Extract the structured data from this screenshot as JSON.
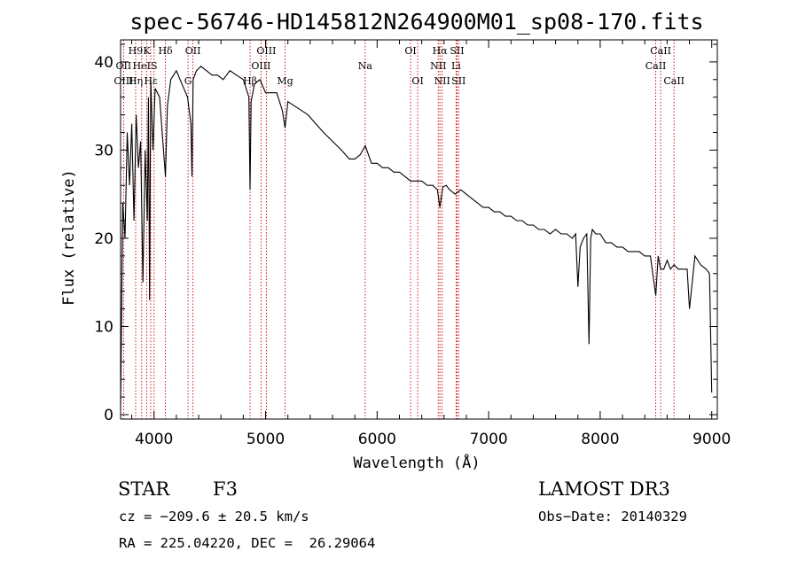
{
  "chart_data": {
    "type": "line",
    "title": "spec-56746-HD145812N264900M01_sp08-170.fits",
    "xlabel": "Wavelength (Å)",
    "ylabel": "Flux (relative)",
    "xlim": [
      3700,
      9050
    ],
    "ylim": [
      -0.5,
      42.5
    ],
    "xticks": [
      4000,
      5000,
      6000,
      7000,
      8000,
      9000
    ],
    "yticks": [
      0,
      10,
      20,
      30,
      40
    ],
    "grid": false,
    "series": [
      {
        "name": "spectrum",
        "x": [
          3700,
          3720,
          3740,
          3760,
          3780,
          3800,
          3820,
          3840,
          3860,
          3880,
          3900,
          3920,
          3940,
          3950,
          3960,
          3970,
          3990,
          4010,
          4050,
          4102,
          4120,
          4150,
          4200,
          4250,
          4300,
          4330,
          4340,
          4350,
          4380,
          4420,
          4470,
          4520,
          4570,
          4620,
          4680,
          4740,
          4800,
          4850,
          4861,
          4870,
          4900,
          4950,
          5000,
          5050,
          5100,
          5150,
          5175,
          5200,
          5260,
          5320,
          5380,
          5450,
          5520,
          5600,
          5680,
          5750,
          5800,
          5850,
          5893,
          5950,
          6000,
          6050,
          6100,
          6150,
          6200,
          6250,
          6300,
          6350,
          6400,
          6450,
          6500,
          6540,
          6563,
          6590,
          6620,
          6650,
          6700,
          6750,
          6800,
          6850,
          6900,
          6950,
          7000,
          7050,
          7100,
          7150,
          7200,
          7250,
          7300,
          7350,
          7400,
          7450,
          7500,
          7550,
          7600,
          7650,
          7700,
          7750,
          7780,
          7800,
          7820,
          7850,
          7880,
          7900,
          7915,
          7930,
          7960,
          8000,
          8050,
          8100,
          8150,
          8200,
          8250,
          8300,
          8350,
          8400,
          8450,
          8498,
          8520,
          8542,
          8570,
          8600,
          8630,
          8662,
          8700,
          8750,
          8780,
          8800,
          8850,
          8900,
          8950,
          8980,
          9000
        ],
        "values": [
          0.5,
          24,
          20,
          32,
          26,
          33,
          22,
          34,
          28,
          31,
          15,
          30,
          22,
          36,
          13,
          38,
          30,
          37,
          36,
          27,
          35,
          38,
          39,
          37.5,
          36,
          33,
          27,
          38,
          39,
          39.5,
          39,
          38.5,
          38.5,
          38,
          39,
          38.5,
          38,
          36,
          25.5,
          35.5,
          37.5,
          38,
          36.5,
          36.5,
          36.5,
          34.5,
          32.5,
          35.5,
          35,
          34.5,
          34,
          33,
          32,
          31,
          30,
          29,
          29,
          29.5,
          30.5,
          28.5,
          28.5,
          28,
          28,
          27.5,
          27.5,
          27,
          26.5,
          26.5,
          26.5,
          26,
          26,
          25.5,
          23.5,
          25.8,
          26,
          25.5,
          25,
          25.5,
          25,
          24.5,
          24,
          23.5,
          23.5,
          23,
          23,
          22.5,
          22.5,
          22,
          22,
          21.5,
          21.5,
          21,
          21,
          20.5,
          21,
          20.5,
          20.5,
          20,
          20.5,
          14.5,
          19,
          20,
          20.5,
          8,
          20,
          21,
          20.5,
          20.5,
          19.5,
          19.5,
          19,
          19,
          18.5,
          18.5,
          18.5,
          18,
          18,
          13.5,
          18,
          16.5,
          16.5,
          17.5,
          16.5,
          17,
          16.5,
          16.5,
          16.5,
          12,
          18,
          17,
          16.5,
          16,
          2.5
        ]
      }
    ],
    "spectral_lines": [
      {
        "name": "H9",
        "wl": 3835,
        "row": 0
      },
      {
        "name": "K",
        "wl": 3934,
        "row": 0
      },
      {
        "name": "Hδ",
        "wl": 4102,
        "row": 0
      },
      {
        "name": "OII",
        "wl": 4349,
        "row": 0
      },
      {
        "name": "OIII",
        "wl": 5007,
        "row": 0
      },
      {
        "name": "OI",
        "wl": 6300,
        "row": 0
      },
      {
        "name": "Hα",
        "wl": 6563,
        "row": 0
      },
      {
        "name": "SII",
        "wl": 6717,
        "row": 0
      },
      {
        "name": "CaII",
        "wl": 8542,
        "row": 0
      },
      {
        "name": "OII",
        "wl": 3727,
        "row": 1
      },
      {
        "name": "HeI",
        "wl": 3889,
        "row": 1
      },
      {
        "name": "S",
        "wl": 4000,
        "row": 1
      },
      {
        "name": "OIII",
        "wl": 4959,
        "row": 1
      },
      {
        "name": "Na",
        "wl": 5893,
        "row": 1
      },
      {
        "name": "NII",
        "wl": 6548,
        "row": 1
      },
      {
        "name": "Li",
        "wl": 6708,
        "row": 1
      },
      {
        "name": "CaII",
        "wl": 8498,
        "row": 1
      },
      {
        "name": "OIII",
        "wl": 3727,
        "row": 2
      },
      {
        "name": "Hη",
        "wl": 3835,
        "row": 2
      },
      {
        "name": "Hε",
        "wl": 3970,
        "row": 2
      },
      {
        "name": "G",
        "wl": 4305,
        "row": 2
      },
      {
        "name": "Hβ",
        "wl": 4861,
        "row": 2
      },
      {
        "name": "Mg",
        "wl": 5175,
        "row": 2
      },
      {
        "name": "OI",
        "wl": 6364,
        "row": 2
      },
      {
        "name": "NII",
        "wl": 6583,
        "row": 2
      },
      {
        "name": "SII",
        "wl": 6731,
        "row": 2
      },
      {
        "name": "CaII",
        "wl": 8662,
        "row": 2
      }
    ],
    "line_colors": {
      "spectrum": "#000000",
      "marker": "#cc0000"
    }
  },
  "info": {
    "class_label": "STAR",
    "subclass": "F3",
    "survey": "LAMOST DR3",
    "cz": "cz = −209.6 ± 20.5 km/s",
    "obs_date": "Obs−Date: 20140329",
    "coords": "RA = 225.04220, DEC =  26.29064"
  }
}
